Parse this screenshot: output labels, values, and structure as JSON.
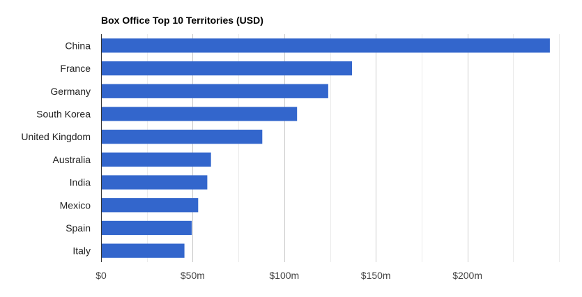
{
  "chart_data": {
    "type": "bar",
    "orientation": "horizontal",
    "title": "Box Office Top 10 Territories (USD)",
    "xlabel": "",
    "ylabel": "",
    "categories": [
      "China",
      "France",
      "Germany",
      "South Korea",
      "United Kingdom",
      "Australia",
      "India",
      "Mexico",
      "Spain",
      "Italy"
    ],
    "values": [
      245,
      137,
      124,
      107,
      88,
      60,
      58,
      53,
      49.5,
      45.5
    ],
    "value_unit": "USD millions",
    "xlim": [
      0,
      250
    ],
    "x_ticks": [
      0,
      50,
      100,
      150,
      200
    ],
    "x_tick_labels": [
      "$0",
      "$50m",
      "$100m",
      "$150m",
      "$200m"
    ],
    "minor_gridline_step": 25,
    "grid": true,
    "legend": "none",
    "bar_color": "#3366cc",
    "gridline_color": "#cccccc",
    "minor_gridline_color": "#ebebeb",
    "axis_color": "#333333"
  }
}
